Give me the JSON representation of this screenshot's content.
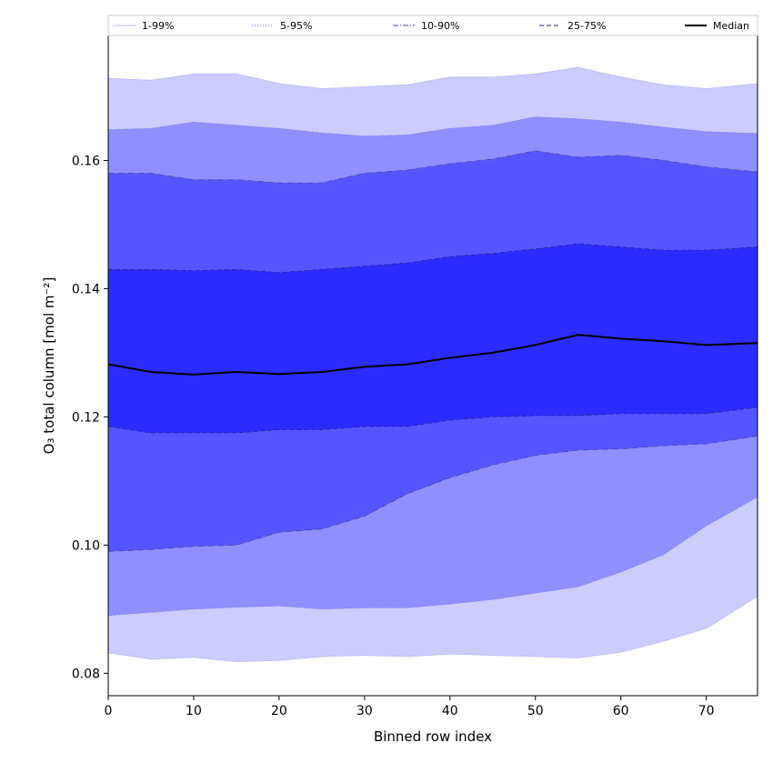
{
  "chart_data": {
    "type": "area",
    "xlabel": "Binned row index",
    "ylabel": "O₃ total column [mol m⁻²]",
    "xlim": [
      0,
      76
    ],
    "ylim": [
      0.0765,
      0.1795
    ],
    "xticks": [
      0,
      10,
      20,
      30,
      40,
      50,
      60,
      70
    ],
    "yticks": [
      0.08,
      0.1,
      0.12,
      0.14,
      0.16
    ],
    "ytick_labels": [
      "0.08",
      "0.10",
      "0.12",
      "0.14",
      "0.16"
    ],
    "grid": false,
    "legend_position": "top",
    "x": [
      0,
      5,
      10,
      15,
      20,
      25,
      30,
      35,
      40,
      45,
      50,
      55,
      60,
      65,
      70,
      76
    ],
    "bands": [
      {
        "name": "1-99%",
        "color": "#ccccff",
        "line_color": "#bbbbee",
        "line_style": "solid",
        "lower": [
          0.0832,
          0.0822,
          0.0825,
          0.0818,
          0.082,
          0.0826,
          0.0828,
          0.0826,
          0.083,
          0.0828,
          0.0826,
          0.0824,
          0.0833,
          0.085,
          0.087,
          0.092
        ],
        "upper": [
          0.1728,
          0.1725,
          0.1735,
          0.1735,
          0.172,
          0.1712,
          0.1715,
          0.1718,
          0.173,
          0.173,
          0.1735,
          0.1745,
          0.173,
          0.1718,
          0.1712,
          0.172
        ]
      },
      {
        "name": "5-95%",
        "color": "#8f8fff",
        "line_color": "#6666cc",
        "line_style": "dotted",
        "lower": [
          0.089,
          0.0895,
          0.09,
          0.0903,
          0.0905,
          0.09,
          0.0902,
          0.0902,
          0.0908,
          0.0915,
          0.0925,
          0.0935,
          0.0958,
          0.0985,
          0.103,
          0.1075
        ],
        "upper": [
          0.1648,
          0.165,
          0.166,
          0.1655,
          0.165,
          0.1643,
          0.1638,
          0.164,
          0.165,
          0.1655,
          0.1668,
          0.1665,
          0.166,
          0.1652,
          0.1645,
          0.1642
        ]
      },
      {
        "name": "10-90%",
        "color": "#5555ff",
        "line_color": "#4444aa",
        "line_style": "dashdot",
        "lower": [
          0.099,
          0.0993,
          0.0998,
          0.1,
          0.102,
          0.1025,
          0.1045,
          0.108,
          0.1105,
          0.1125,
          0.114,
          0.1148,
          0.115,
          0.1155,
          0.1158,
          0.117
        ],
        "upper": [
          0.158,
          0.158,
          0.157,
          0.157,
          0.1565,
          0.1565,
          0.158,
          0.1585,
          0.1595,
          0.1602,
          0.1615,
          0.1605,
          0.1608,
          0.16,
          0.159,
          0.1582
        ]
      },
      {
        "name": "25-75%",
        "color": "#2b2bff",
        "line_color": "#222299",
        "line_style": "dashed",
        "lower": [
          0.1185,
          0.1175,
          0.1175,
          0.1175,
          0.118,
          0.118,
          0.1185,
          0.1185,
          0.1195,
          0.12,
          0.1202,
          0.1202,
          0.1205,
          0.1205,
          0.1205,
          0.1215
        ],
        "upper": [
          0.143,
          0.143,
          0.1428,
          0.143,
          0.1425,
          0.143,
          0.1435,
          0.144,
          0.145,
          0.1455,
          0.1462,
          0.147,
          0.1465,
          0.146,
          0.146,
          0.1465
        ]
      }
    ],
    "series": [
      {
        "name": "Median",
        "color": "#000000",
        "values": [
          0.1282,
          0.127,
          0.1266,
          0.127,
          0.1267,
          0.127,
          0.1278,
          0.1282,
          0.1292,
          0.13,
          0.1312,
          0.1328,
          0.1322,
          0.1318,
          0.1312,
          0.1315
        ]
      }
    ]
  }
}
